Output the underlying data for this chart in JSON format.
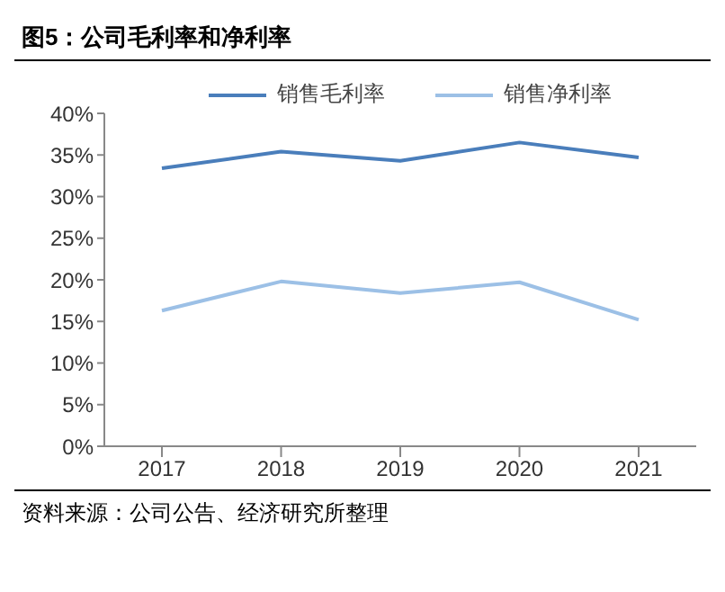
{
  "chart_data": {
    "type": "line",
    "title": "图5：公司毛利率和净利率",
    "categories": [
      "2017",
      "2018",
      "2019",
      "2020",
      "2021"
    ],
    "series": [
      {
        "name": "销售毛利率",
        "color": "#4a7ebb",
        "values": [
          33.4,
          35.4,
          34.3,
          36.5,
          34.7
        ]
      },
      {
        "name": "销售净利率",
        "color": "#9cc0e6",
        "values": [
          16.3,
          19.8,
          18.4,
          19.7,
          15.2
        ]
      }
    ],
    "ylim": [
      0,
      40
    ],
    "yticks": [
      {
        "value": 0,
        "label": "0%"
      },
      {
        "value": 5,
        "label": "5%"
      },
      {
        "value": 10,
        "label": "10%"
      },
      {
        "value": 15,
        "label": "15%"
      },
      {
        "value": 20,
        "label": "20%"
      },
      {
        "value": 25,
        "label": "25%"
      },
      {
        "value": 30,
        "label": "30%"
      },
      {
        "value": 35,
        "label": "35%"
      },
      {
        "value": 40,
        "label": "40%"
      }
    ],
    "grid": false,
    "legend": "top",
    "marker": "none",
    "line_style": "solid",
    "annotations": [
      "资料来源：公司公告、经济研究所整理"
    ]
  }
}
